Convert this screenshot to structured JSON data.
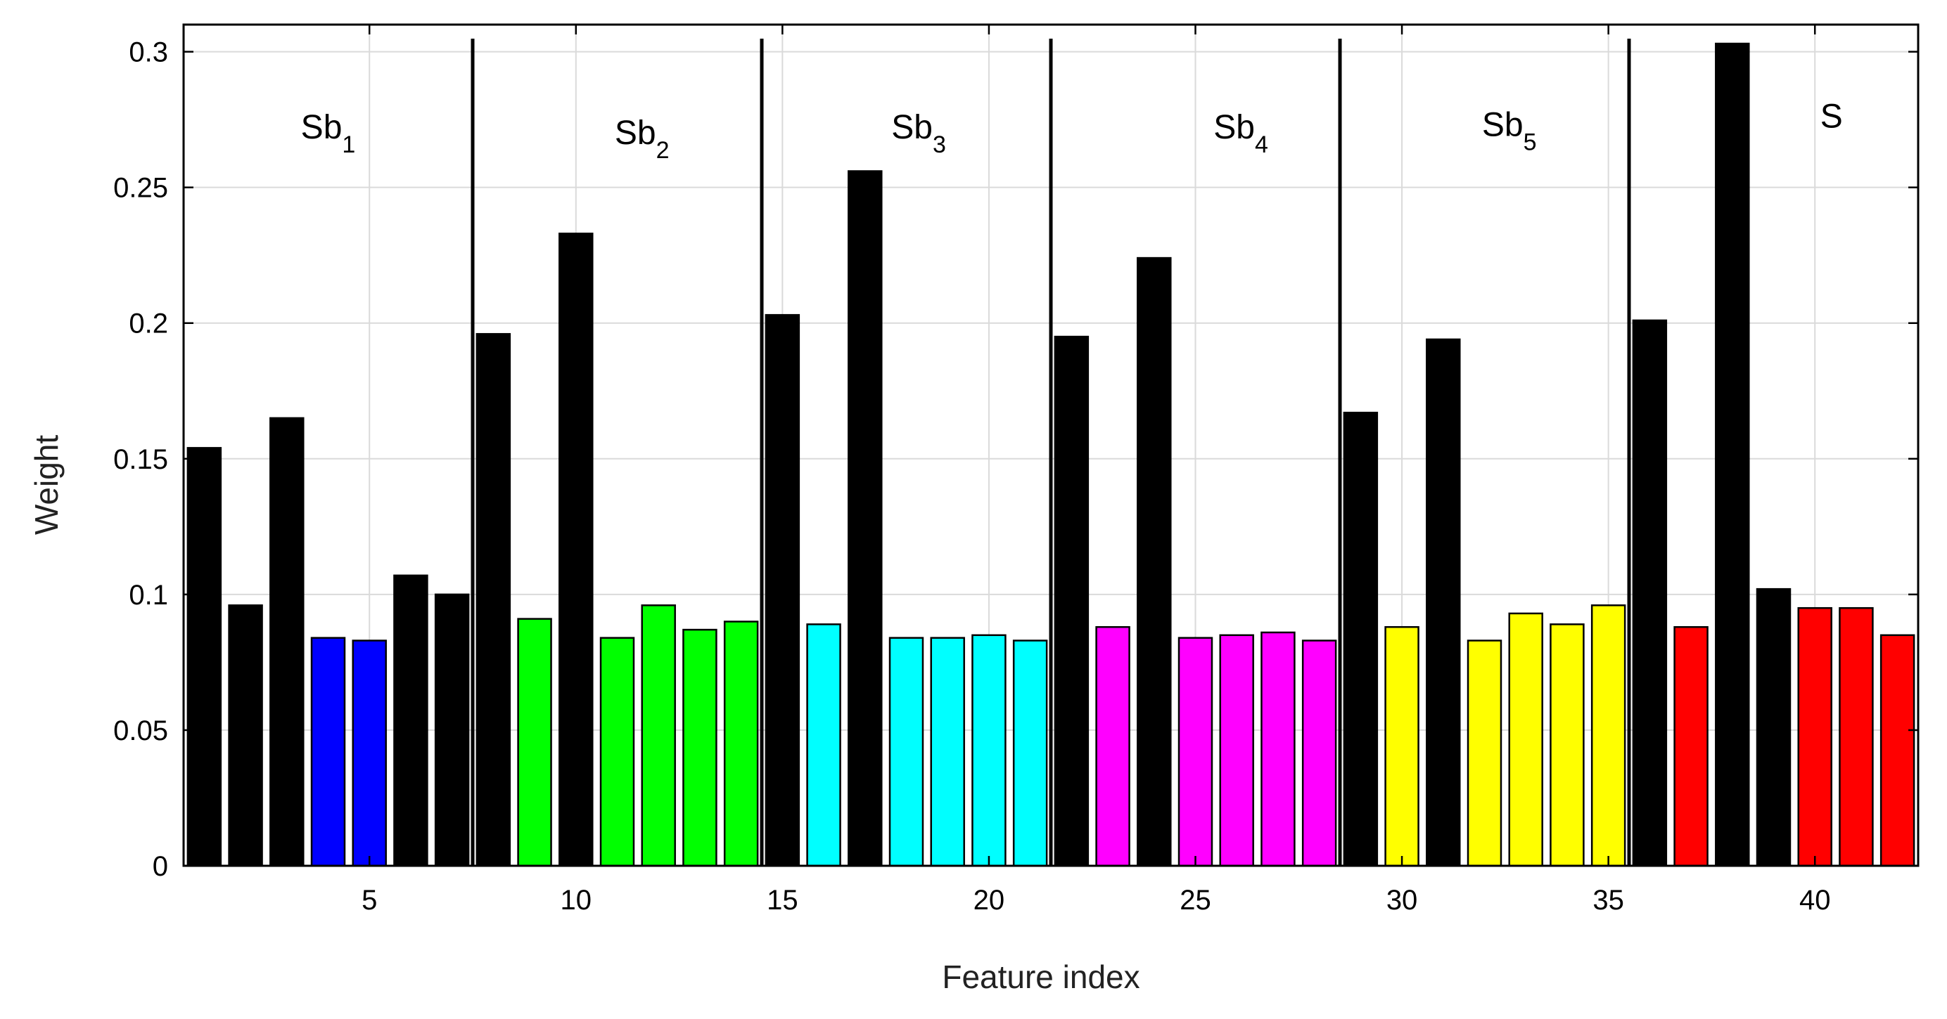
{
  "chart_data": {
    "type": "bar",
    "title": "",
    "xlabel": "Feature index",
    "ylabel": "Weight",
    "xlim": [
      0.5,
      42.5
    ],
    "ylim": [
      0,
      0.31
    ],
    "grid": true,
    "x_ticks": [
      5,
      10,
      15,
      20,
      25,
      30,
      35,
      40
    ],
    "x_tick_labels": [
      "5",
      "10",
      "15",
      "20",
      "25",
      "30",
      "35",
      "40"
    ],
    "y_ticks": [
      0,
      0.05,
      0.1,
      0.15,
      0.2,
      0.25,
      0.3
    ],
    "y_tick_labels": [
      "0",
      "0.05",
      "0.1",
      "0.15",
      "0.2",
      "0.25",
      "0.3"
    ],
    "x": [
      1,
      2,
      3,
      4,
      5,
      6,
      7,
      8,
      9,
      10,
      11,
      12,
      13,
      14,
      15,
      16,
      17,
      18,
      19,
      20,
      21,
      22,
      23,
      24,
      25,
      26,
      27,
      28,
      29,
      30,
      31,
      32,
      33,
      34,
      35,
      36,
      37,
      38,
      39,
      40,
      41,
      42
    ],
    "values": [
      0.154,
      0.096,
      0.165,
      0.084,
      0.083,
      0.107,
      0.1,
      0.196,
      0.091,
      0.233,
      0.084,
      0.096,
      0.087,
      0.09,
      0.203,
      0.089,
      0.256,
      0.084,
      0.084,
      0.085,
      0.083,
      0.195,
      0.088,
      0.224,
      0.084,
      0.085,
      0.086,
      0.083,
      0.167,
      0.088,
      0.194,
      0.083,
      0.093,
      0.089,
      0.096,
      0.201,
      0.088,
      0.303,
      0.102,
      0.095,
      0.095,
      0.085
    ],
    "bar_colors": [
      "#000000",
      "#000000",
      "#000000",
      "#0000ff",
      "#0000ff",
      "#000000",
      "#000000",
      "#000000",
      "#00ff00",
      "#000000",
      "#00ff00",
      "#00ff00",
      "#00ff00",
      "#00ff00",
      "#000000",
      "#00ffff",
      "#000000",
      "#00ffff",
      "#00ffff",
      "#00ffff",
      "#00ffff",
      "#000000",
      "#ff00ff",
      "#000000",
      "#ff00ff",
      "#ff00ff",
      "#ff00ff",
      "#ff00ff",
      "#000000",
      "#ffff00",
      "#000000",
      "#ffff00",
      "#ffff00",
      "#ffff00",
      "#ffff00",
      "#000000",
      "#ff0000",
      "#000000",
      "#000000",
      "#ff0000",
      "#ff0000",
      "#ff0000"
    ],
    "separators": [
      7.5,
      14.5,
      21.5,
      28.5,
      35.5
    ],
    "groups": [
      {
        "base": "Sb",
        "sub": "1",
        "x": 4.0,
        "y": 0.268
      },
      {
        "base": "Sb",
        "sub": "2",
        "x": 11.6,
        "y": 0.266
      },
      {
        "base": "Sb",
        "sub": "3",
        "x": 18.3,
        "y": 0.268
      },
      {
        "base": "Sb",
        "sub": "4",
        "x": 26.1,
        "y": 0.268
      },
      {
        "base": "Sb",
        "sub": "5",
        "x": 32.6,
        "y": 0.269
      },
      {
        "base": "S",
        "sub": "",
        "x": 40.4,
        "y": 0.272
      }
    ]
  }
}
